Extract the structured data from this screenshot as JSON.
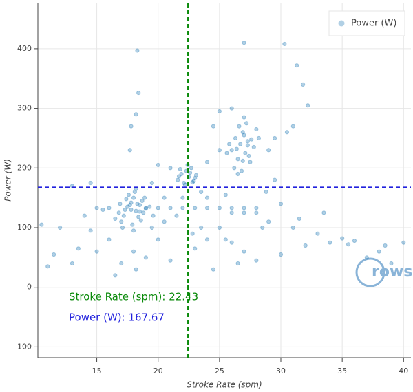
{
  "chart_data": {
    "type": "scatter",
    "x_label": "Stroke Rate (spm)",
    "y_label": "Power (W)",
    "xlim": [
      10.2,
      40.6
    ],
    "ylim": [
      -118,
      476
    ],
    "xticks": [
      15,
      20,
      25,
      30,
      35,
      40
    ],
    "yticks": [
      -100,
      0,
      100,
      200,
      300,
      400
    ],
    "grid": true,
    "legend": "top-right",
    "logo_text": "rows",
    "crosshair": {
      "x": {
        "value": 22.43,
        "label": "Stroke Rate (spm):  22.43",
        "color": "#0a8a0a"
      },
      "y": {
        "value": 167.67,
        "label": "Power (W): 167.67",
        "color": "#2222dd"
      }
    },
    "x": [
      17.2,
      17.5,
      17.8,
      18,
      18.2,
      18.5,
      18.8,
      19,
      17,
      17.6,
      18.1,
      18.4,
      18.7,
      17.3,
      17.9,
      18.3,
      16.8,
      19.3,
      17.4,
      18.6,
      18,
      17.7,
      18.9,
      16.5,
      19.6,
      17.1,
      18.2,
      17.8,
      18.5,
      16.9,
      21.6,
      21.9,
      22.1,
      22.3,
      22.5,
      22.7,
      22.9,
      23.1,
      21.8,
      22.2,
      22.6,
      23,
      22.4,
      21.7,
      22.8,
      26,
      26.3,
      26.5,
      26.7,
      26.9,
      27.1,
      27.3,
      27.5,
      27.8,
      26.2,
      26.6,
      27,
      27.4,
      25.8,
      28.2,
      26.8,
      27.2,
      26.4,
      27.6,
      26.9,
      27,
      25.6,
      28,
      26.5,
      27.3,
      15,
      16,
      19,
      20,
      21,
      22,
      23,
      24,
      25,
      26,
      27,
      28,
      26,
      27,
      28,
      12,
      13,
      11,
      14,
      15,
      16,
      17,
      18,
      19,
      20,
      21,
      16.5,
      18.2,
      19.5,
      20.5,
      23,
      24,
      25,
      26,
      27,
      28,
      29,
      30,
      31,
      32,
      33,
      34,
      35,
      36,
      37,
      38,
      39,
      40,
      10.5,
      11.5,
      14.5,
      15.5,
      13.5,
      24.5,
      26.5,
      21.5,
      22.8,
      23.5,
      25.5,
      28.5,
      31.5,
      33.5,
      35.5,
      38.5,
      18.3,
      18.4,
      18.2,
      17.8,
      17.7,
      27,
      30.3,
      31.3,
      31.8,
      32.2,
      31,
      30.5,
      29.5,
      29,
      24.5,
      25,
      24,
      20,
      21,
      19.5,
      14.5,
      13,
      29.5,
      25.5,
      28.8,
      30,
      24,
      23.5,
      22,
      20.5,
      25,
      26
    ],
    "series": [
      {
        "name": "Power (W)",
        "color": "#1f77b4",
        "values": [
          120,
          135,
          142,
          150,
          128,
          138,
          125,
          132,
          110,
          155,
          160,
          118,
          145,
          130,
          105,
          140,
          125,
          135,
          148,
          112,
          95,
          138,
          150,
          115,
          120,
          100,
          165,
          130,
          127,
          140,
          180,
          190,
          175,
          195,
          185,
          200,
          178,
          188,
          198,
          172,
          192,
          183,
          205,
          186,
          176,
          230,
          250,
          215,
          240,
          260,
          225,
          245,
          210,
          235,
          200,
          270,
          255,
          220,
          240,
          250,
          195,
          275,
          232,
          248,
          212,
          285,
          225,
          265,
          190,
          238,
          133,
          133,
          133,
          133,
          133,
          133,
          133,
          133,
          133,
          133,
          133,
          133,
          125,
          125,
          125,
          100,
          40,
          35,
          120,
          60,
          80,
          40,
          60,
          50,
          80,
          45,
          20,
          30,
          100,
          110,
          65,
          80,
          100,
          75,
          60,
          45,
          110,
          55,
          100,
          70,
          90,
          75,
          82,
          78,
          50,
          60,
          40,
          75,
          105,
          55,
          95,
          130,
          65,
          30,
          40,
          120,
          90,
          100,
          80,
          100,
          115,
          125,
          72,
          70,
          397,
          326,
          290,
          270,
          230,
          410,
          408,
          372,
          340,
          305,
          270,
          260,
          250,
          230,
          270,
          230,
          210,
          205,
          200,
          175,
          175,
          170,
          180,
          155,
          160,
          140,
          150,
          160,
          150,
          150,
          295,
          300
        ]
      }
    ]
  }
}
